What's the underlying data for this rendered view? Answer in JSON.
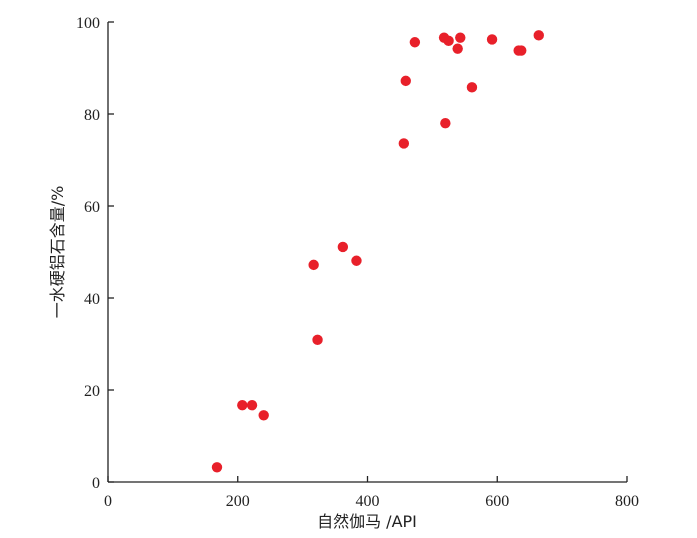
{
  "chart_data": {
    "type": "scatter",
    "xlabel": "自然伽马 /API",
    "ylabel": "一水硬铝石含量/%",
    "xlim": [
      0,
      800
    ],
    "ylim": [
      0,
      100
    ],
    "x_ticks": [
      0,
      200,
      400,
      600,
      800
    ],
    "y_ticks": [
      0,
      20,
      40,
      60,
      80,
      100
    ],
    "grid": false,
    "marker_color": "#e8202a",
    "points": [
      {
        "x": 168,
        "y": 3.2
      },
      {
        "x": 207,
        "y": 16.7
      },
      {
        "x": 222,
        "y": 16.7
      },
      {
        "x": 240,
        "y": 14.5
      },
      {
        "x": 317,
        "y": 47.2
      },
      {
        "x": 323,
        "y": 30.9
      },
      {
        "x": 362,
        "y": 51.1
      },
      {
        "x": 383,
        "y": 48.1
      },
      {
        "x": 456,
        "y": 73.6
      },
      {
        "x": 459,
        "y": 87.2
      },
      {
        "x": 473,
        "y": 95.6
      },
      {
        "x": 518,
        "y": 96.6
      },
      {
        "x": 520,
        "y": 78.0
      },
      {
        "x": 525,
        "y": 95.9
      },
      {
        "x": 539,
        "y": 94.2
      },
      {
        "x": 543,
        "y": 96.6
      },
      {
        "x": 561,
        "y": 85.8
      },
      {
        "x": 592,
        "y": 96.2
      },
      {
        "x": 633,
        "y": 93.8
      },
      {
        "x": 637,
        "y": 93.8
      },
      {
        "x": 664,
        "y": 97.1
      }
    ]
  }
}
